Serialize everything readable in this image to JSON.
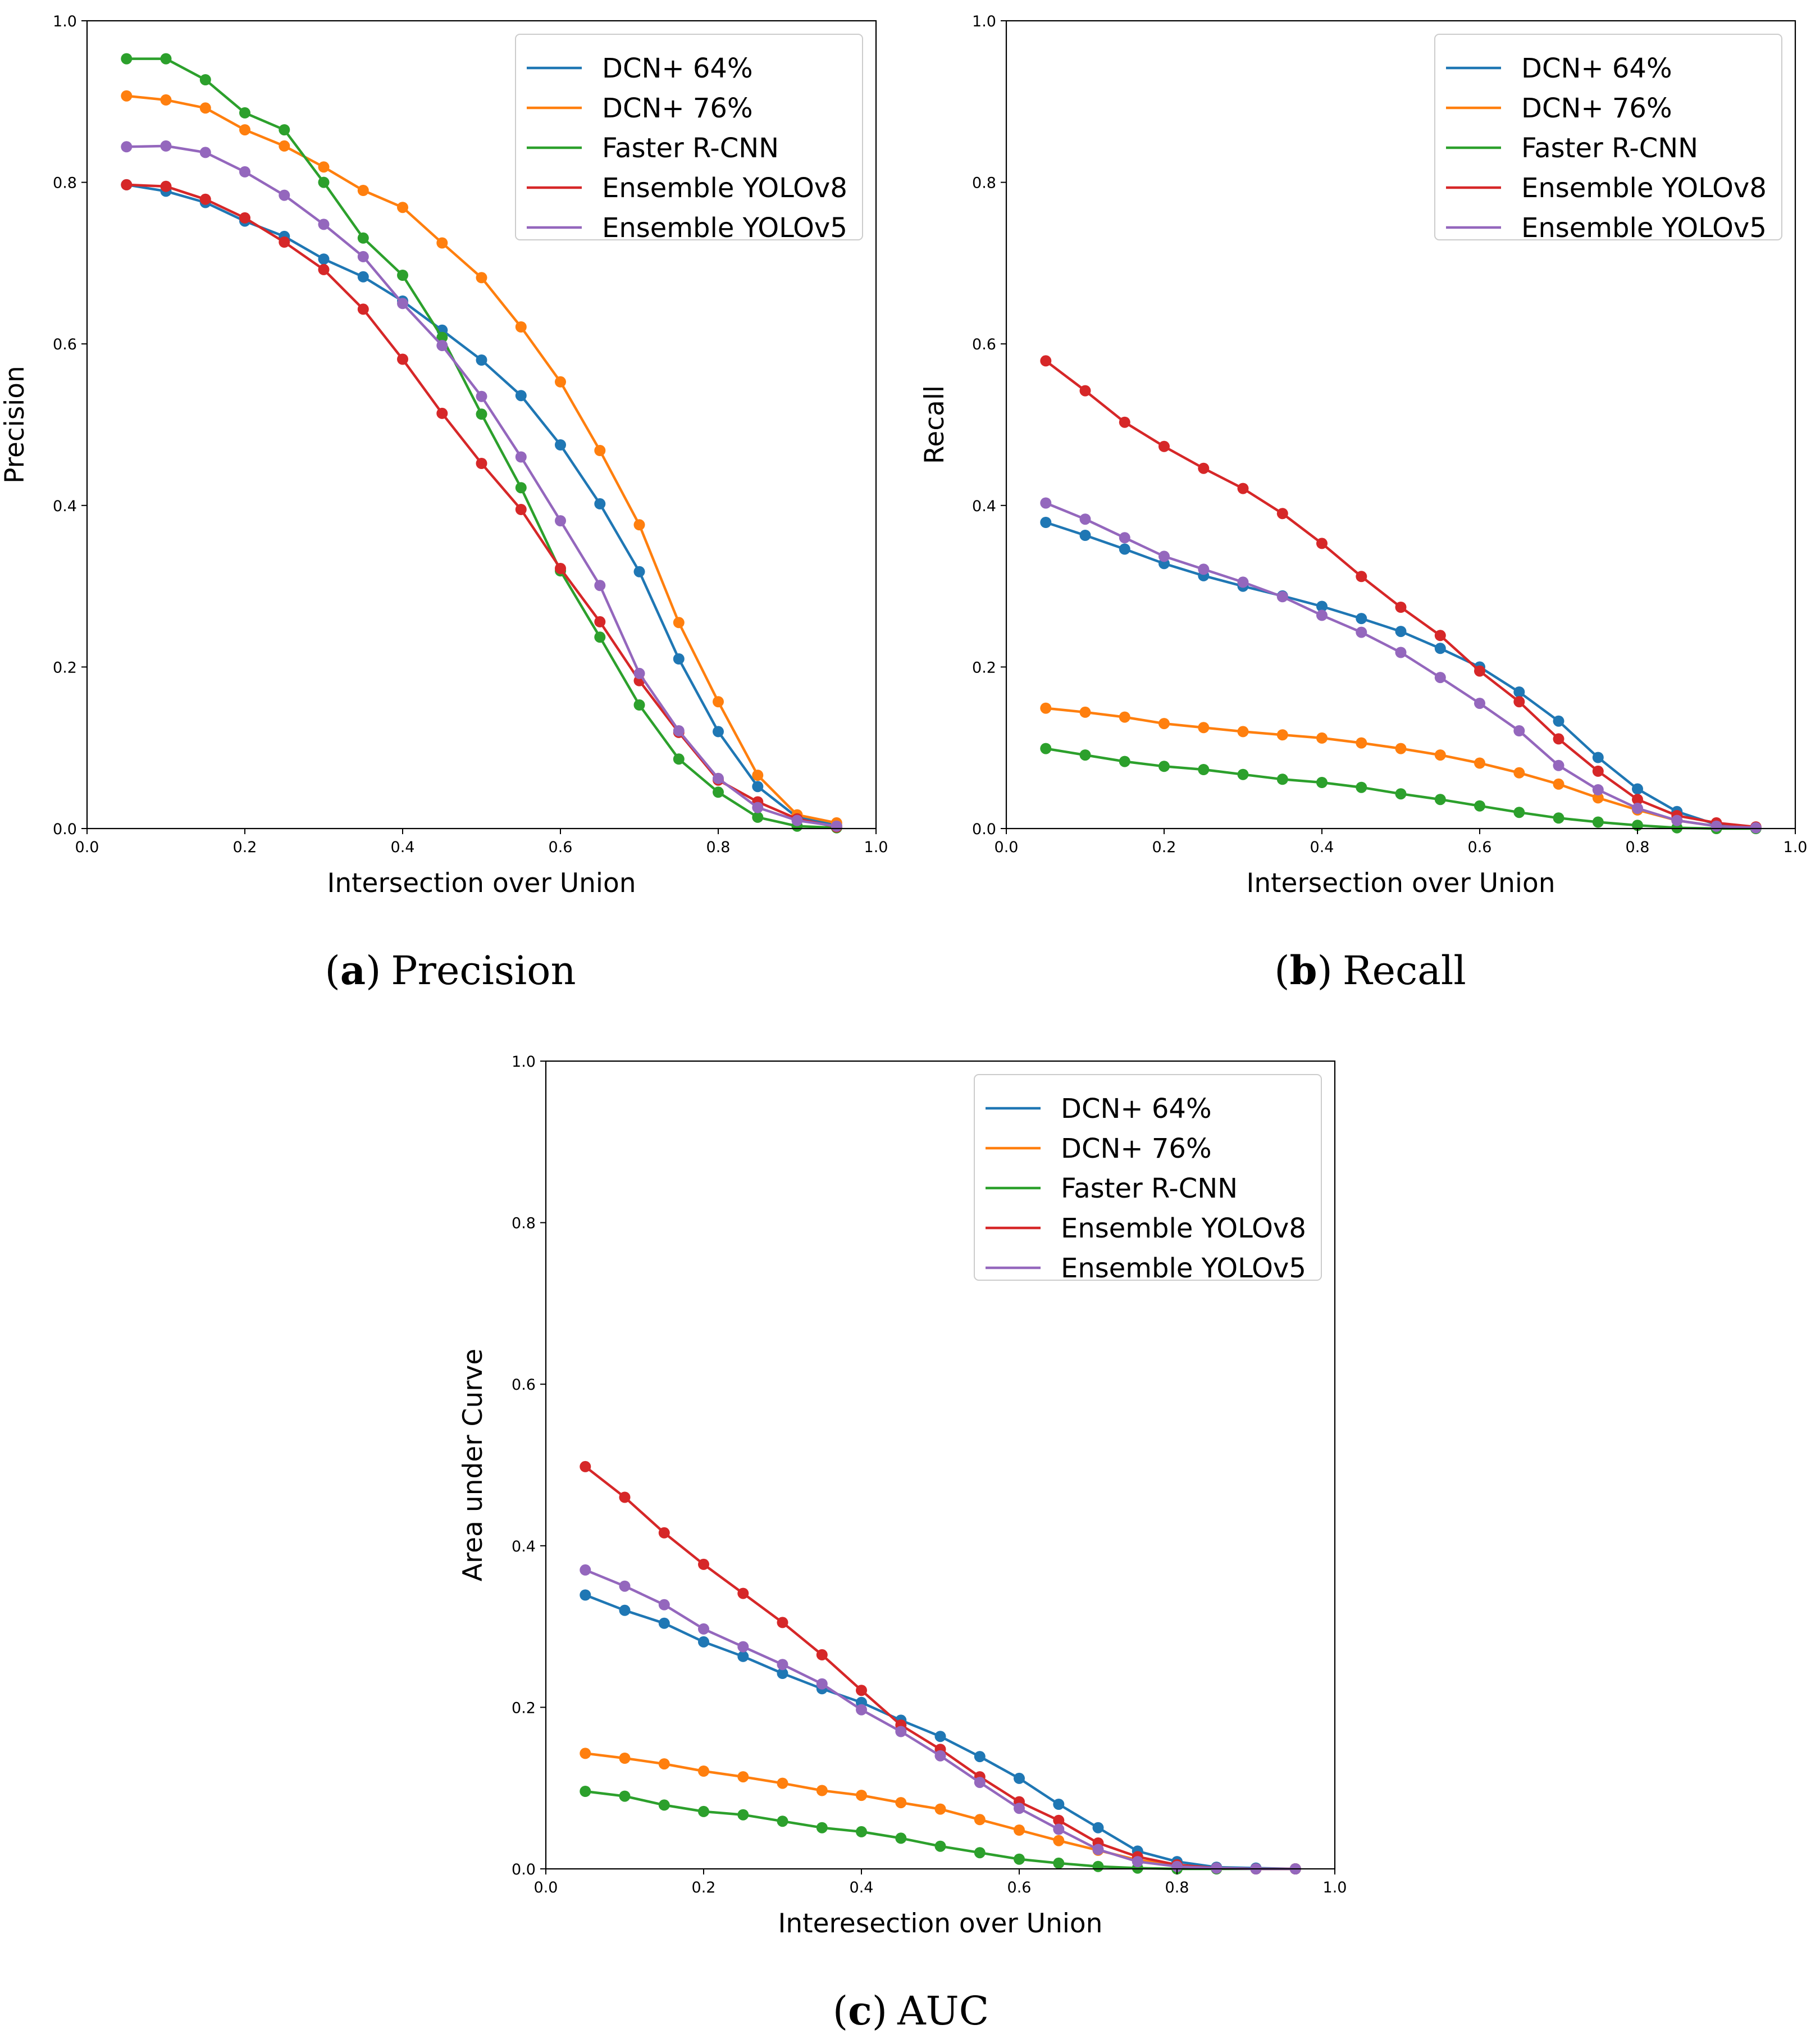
{
  "chart_data": [
    {
      "type": "line",
      "caption": {
        "open": "(",
        "letter": "a",
        "close": ")",
        "title": "Precision"
      },
      "xlabel": "Intersection over Union",
      "ylabel": "Precision",
      "xlim": [
        0.0,
        1.0
      ],
      "ylim": [
        0.0,
        1.0
      ],
      "xticks": [
        "0.0",
        "0.2",
        "0.4",
        "0.6",
        "0.8",
        "1.0"
      ],
      "yticks": [
        "0.0",
        "0.2",
        "0.4",
        "0.6",
        "0.8",
        "1.0"
      ],
      "legend_position": "top-right",
      "x": [
        0.05,
        0.1,
        0.15,
        0.2,
        0.25,
        0.3,
        0.35,
        0.4,
        0.45,
        0.5,
        0.55,
        0.6,
        0.65,
        0.7,
        0.75,
        0.8,
        0.85,
        0.9,
        0.95
      ],
      "series": [
        {
          "name": "DCN+ 64%",
          "color": "#1f77b4",
          "values": [
            0.797,
            0.789,
            0.775,
            0.752,
            0.733,
            0.705,
            0.683,
            0.653,
            0.617,
            0.58,
            0.536,
            0.475,
            0.402,
            0.318,
            0.21,
            0.12,
            0.052,
            0.014,
            0.004
          ]
        },
        {
          "name": "DCN+ 76%",
          "color": "#ff7f0e",
          "values": [
            0.907,
            0.902,
            0.892,
            0.865,
            0.845,
            0.819,
            0.79,
            0.769,
            0.725,
            0.682,
            0.621,
            0.553,
            0.468,
            0.376,
            0.255,
            0.157,
            0.066,
            0.017,
            0.007
          ]
        },
        {
          "name": "Faster R-CNN",
          "color": "#2ca02c",
          "values": [
            0.953,
            0.953,
            0.927,
            0.886,
            0.865,
            0.8,
            0.731,
            0.685,
            0.608,
            0.513,
            0.422,
            0.319,
            0.237,
            0.153,
            0.086,
            0.045,
            0.014,
            0.003,
            0.001
          ]
        },
        {
          "name": "Ensemble YOLOv8",
          "color": "#d62728",
          "values": [
            0.797,
            0.795,
            0.779,
            0.756,
            0.726,
            0.692,
            0.643,
            0.581,
            0.514,
            0.452,
            0.395,
            0.322,
            0.256,
            0.183,
            0.119,
            0.06,
            0.033,
            0.012,
            0.002
          ]
        },
        {
          "name": "Ensemble YOLOv5",
          "color": "#9467bd",
          "values": [
            0.844,
            0.845,
            0.837,
            0.813,
            0.784,
            0.748,
            0.708,
            0.65,
            0.598,
            0.535,
            0.46,
            0.381,
            0.301,
            0.192,
            0.121,
            0.062,
            0.026,
            0.01,
            0.003
          ]
        }
      ]
    },
    {
      "type": "line",
      "caption": {
        "open": "(",
        "letter": "b",
        "close": ")",
        "title": "Recall"
      },
      "xlabel": "Intersection over Union",
      "ylabel": "Recall",
      "xlim": [
        0.0,
        1.0
      ],
      "ylim": [
        0.0,
        1.0
      ],
      "xticks": [
        "0.0",
        "0.2",
        "0.4",
        "0.6",
        "0.8",
        "1.0"
      ],
      "yticks": [
        "0.0",
        "0.2",
        "0.4",
        "0.6",
        "0.8",
        "1.0"
      ],
      "legend_position": "top-right",
      "x": [
        0.05,
        0.1,
        0.15,
        0.2,
        0.25,
        0.3,
        0.35,
        0.4,
        0.45,
        0.5,
        0.55,
        0.6,
        0.65,
        0.7,
        0.75,
        0.8,
        0.85,
        0.9,
        0.95
      ],
      "series": [
        {
          "name": "DCN+ 64%",
          "color": "#1f77b4",
          "values": [
            0.379,
            0.363,
            0.346,
            0.328,
            0.313,
            0.3,
            0.288,
            0.275,
            0.26,
            0.244,
            0.223,
            0.2,
            0.169,
            0.133,
            0.088,
            0.049,
            0.021,
            0.005,
            0.001
          ]
        },
        {
          "name": "DCN+ 76%",
          "color": "#ff7f0e",
          "values": [
            0.149,
            0.144,
            0.138,
            0.13,
            0.125,
            0.12,
            0.116,
            0.112,
            0.106,
            0.099,
            0.091,
            0.081,
            0.069,
            0.055,
            0.038,
            0.023,
            0.01,
            0.003,
            0.001
          ]
        },
        {
          "name": "Faster R-CNN",
          "color": "#2ca02c",
          "values": [
            0.099,
            0.091,
            0.083,
            0.077,
            0.073,
            0.067,
            0.061,
            0.057,
            0.051,
            0.043,
            0.036,
            0.028,
            0.02,
            0.013,
            0.008,
            0.004,
            0.001,
            0.0,
            0.0
          ]
        },
        {
          "name": "Ensemble YOLOv8",
          "color": "#d62728",
          "values": [
            0.579,
            0.542,
            0.503,
            0.473,
            0.446,
            0.421,
            0.39,
            0.353,
            0.312,
            0.274,
            0.239,
            0.195,
            0.157,
            0.111,
            0.071,
            0.036,
            0.016,
            0.007,
            0.002
          ]
        },
        {
          "name": "Ensemble YOLOv5",
          "color": "#9467bd",
          "values": [
            0.403,
            0.383,
            0.36,
            0.337,
            0.321,
            0.305,
            0.287,
            0.264,
            0.243,
            0.218,
            0.187,
            0.155,
            0.121,
            0.078,
            0.048,
            0.025,
            0.01,
            0.003,
            0.001
          ]
        }
      ]
    },
    {
      "type": "line",
      "caption": {
        "open": "(",
        "letter": "c",
        "close": ")",
        "title": "AUC"
      },
      "xlabel": "Interesection over Union",
      "ylabel": "Area under Curve",
      "xlim": [
        0.0,
        1.0
      ],
      "ylim": [
        0.0,
        1.0
      ],
      "xticks": [
        "0.0",
        "0.2",
        "0.4",
        "0.6",
        "0.8",
        "1.0"
      ],
      "yticks": [
        "0.0",
        "0.2",
        "0.4",
        "0.6",
        "0.8",
        "1.0"
      ],
      "legend_position": "top-right",
      "x": [
        0.05,
        0.1,
        0.15,
        0.2,
        0.25,
        0.3,
        0.35,
        0.4,
        0.45,
        0.5,
        0.55,
        0.6,
        0.65,
        0.7,
        0.75,
        0.8,
        0.85,
        0.9,
        0.95
      ],
      "series": [
        {
          "name": "DCN+ 64%",
          "color": "#1f77b4",
          "values": [
            0.339,
            0.32,
            0.304,
            0.281,
            0.263,
            0.242,
            0.223,
            0.206,
            0.184,
            0.164,
            0.139,
            0.112,
            0.08,
            0.051,
            0.022,
            0.009,
            0.002,
            0.001,
            0.0
          ]
        },
        {
          "name": "DCN+ 76%",
          "color": "#ff7f0e",
          "values": [
            0.143,
            0.137,
            0.13,
            0.121,
            0.114,
            0.106,
            0.097,
            0.091,
            0.082,
            0.074,
            0.061,
            0.048,
            0.035,
            0.023,
            0.011,
            0.004,
            0.001,
            0.0,
            0.0
          ]
        },
        {
          "name": "Faster R-CNN",
          "color": "#2ca02c",
          "values": [
            0.096,
            0.09,
            0.079,
            0.071,
            0.067,
            0.059,
            0.051,
            0.046,
            0.038,
            0.028,
            0.02,
            0.012,
            0.007,
            0.003,
            0.001,
            0.0,
            0.0,
            0.0,
            0.0
          ]
        },
        {
          "name": "Ensemble YOLOv8",
          "color": "#d62728",
          "values": [
            0.498,
            0.46,
            0.416,
            0.377,
            0.341,
            0.305,
            0.265,
            0.221,
            0.178,
            0.148,
            0.114,
            0.083,
            0.06,
            0.032,
            0.015,
            0.005,
            0.001,
            0.0,
            0.0
          ]
        },
        {
          "name": "Ensemble YOLOv5",
          "color": "#9467bd",
          "values": [
            0.37,
            0.35,
            0.327,
            0.297,
            0.275,
            0.253,
            0.229,
            0.197,
            0.17,
            0.14,
            0.107,
            0.075,
            0.049,
            0.024,
            0.009,
            0.003,
            0.001,
            0.0,
            0.0
          ]
        }
      ]
    }
  ]
}
